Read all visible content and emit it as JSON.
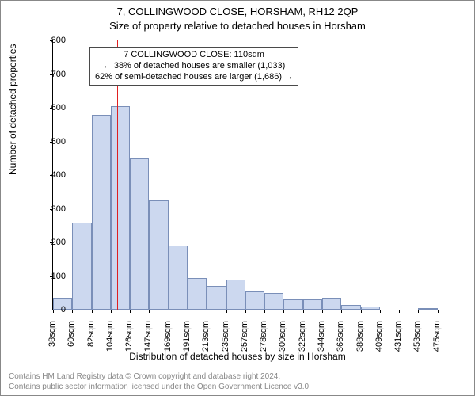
{
  "title": "7, COLLINGWOOD CLOSE, HORSHAM, RH12 2QP",
  "subtitle": "Size of property relative to detached houses in Horsham",
  "ylabel": "Number of detached properties",
  "xlabel": "Distribution of detached houses by size in Horsham",
  "footer_line1": "Contains HM Land Registry data © Crown copyright and database right 2024.",
  "footer_line2": "Contains public sector information licensed under the Open Government Licence v3.0.",
  "annotation": {
    "line1": "7 COLLINGWOOD CLOSE: 110sqm",
    "line2": "← 38% of detached houses are smaller (1,033)",
    "line3": "62% of semi-detached houses are larger (1,686) →",
    "border_color": "#4a4a4a",
    "bg_color": "#ffffff",
    "fontsize": 11
  },
  "chart": {
    "type": "histogram",
    "bar_fill": "#ccd8ef",
    "bar_border": "#7a8fb8",
    "background": "#ffffff",
    "ref_line_color": "#e02020",
    "ref_line_x_index": 3.35,
    "xlim": [
      0,
      21
    ],
    "ylim": [
      0,
      800
    ],
    "ytick_step": 100,
    "categories": [
      "38sqm",
      "60sqm",
      "82sqm",
      "104sqm",
      "126sqm",
      "147sqm",
      "169sqm",
      "191sqm",
      "213sqm",
      "235sqm",
      "257sqm",
      "278sqm",
      "300sqm",
      "322sqm",
      "344sqm",
      "366sqm",
      "388sqm",
      "409sqm",
      "431sqm",
      "453sqm",
      "475sqm"
    ],
    "values": [
      35,
      260,
      580,
      605,
      450,
      325,
      190,
      95,
      70,
      90,
      55,
      50,
      30,
      30,
      35,
      15,
      10,
      0,
      0,
      5,
      0
    ],
    "bar_width": 1.0,
    "title_fontsize": 13,
    "label_fontsize": 12,
    "tick_fontsize": 11
  }
}
